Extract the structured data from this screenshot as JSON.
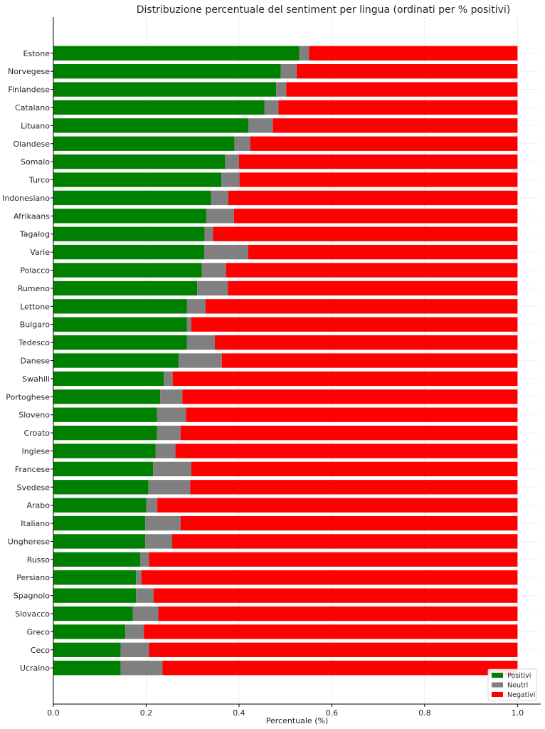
{
  "chart_data": {
    "type": "bar",
    "orientation": "horizontal",
    "stacked": true,
    "title": "Distribuzione percentuale del sentiment per lingua (ordinati per % positivi)",
    "xlabel": "Percentuale (%)",
    "ylabel": "",
    "xlim": [
      0,
      1.05
    ],
    "xticks": [
      "0.0",
      "0.2",
      "0.4",
      "0.6",
      "0.8",
      "1.0"
    ],
    "grid": true,
    "legend_position": "bottom-right",
    "categories": [
      "Estone",
      "Norvegese",
      "Finlandese",
      "Catalano",
      "Lituano",
      "Olandese",
      "Somalo",
      "Turco",
      "Indonesiano",
      "Afrikaans",
      "Tagalog",
      "Varie",
      "Polacco",
      "Rumeno",
      "Lettone",
      "Bulgaro",
      "Tedesco",
      "Danese",
      "Swahili",
      "Portoghese",
      "Sloveno",
      "Croato",
      "Inglese",
      "Francese",
      "Svedese",
      "Arabo",
      "Italiano",
      "Ungherese",
      "Russo",
      "Persiano",
      "Spagnolo",
      "Slovacco",
      "Greco",
      "Ceco",
      "Ucraino"
    ],
    "series": [
      {
        "name": "Positivi",
        "color": "#008000",
        "values": [
          0.53,
          0.49,
          0.48,
          0.455,
          0.42,
          0.39,
          0.37,
          0.362,
          0.34,
          0.33,
          0.326,
          0.325,
          0.32,
          0.31,
          0.288,
          0.288,
          0.288,
          0.27,
          0.238,
          0.23,
          0.223,
          0.223,
          0.22,
          0.215,
          0.205,
          0.2,
          0.198,
          0.198,
          0.187,
          0.178,
          0.178,
          0.171,
          0.155,
          0.145,
          0.145
        ]
      },
      {
        "name": "Neutri",
        "color": "#808080",
        "values": [
          0.021,
          0.034,
          0.022,
          0.03,
          0.053,
          0.034,
          0.03,
          0.039,
          0.037,
          0.059,
          0.018,
          0.095,
          0.052,
          0.066,
          0.04,
          0.009,
          0.06,
          0.093,
          0.019,
          0.048,
          0.063,
          0.051,
          0.043,
          0.082,
          0.09,
          0.024,
          0.076,
          0.058,
          0.019,
          0.012,
          0.038,
          0.055,
          0.04,
          0.061,
          0.09
        ]
      },
      {
        "name": "Negativi",
        "color": "#ff0000",
        "values": [
          0.449,
          0.476,
          0.498,
          0.515,
          0.527,
          0.576,
          0.6,
          0.599,
          0.623,
          0.611,
          0.656,
          0.58,
          0.628,
          0.624,
          0.672,
          0.703,
          0.652,
          0.637,
          0.743,
          0.722,
          0.714,
          0.726,
          0.737,
          0.703,
          0.705,
          0.776,
          0.726,
          0.744,
          0.794,
          0.81,
          0.784,
          0.774,
          0.805,
          0.794,
          0.765
        ]
      }
    ]
  }
}
